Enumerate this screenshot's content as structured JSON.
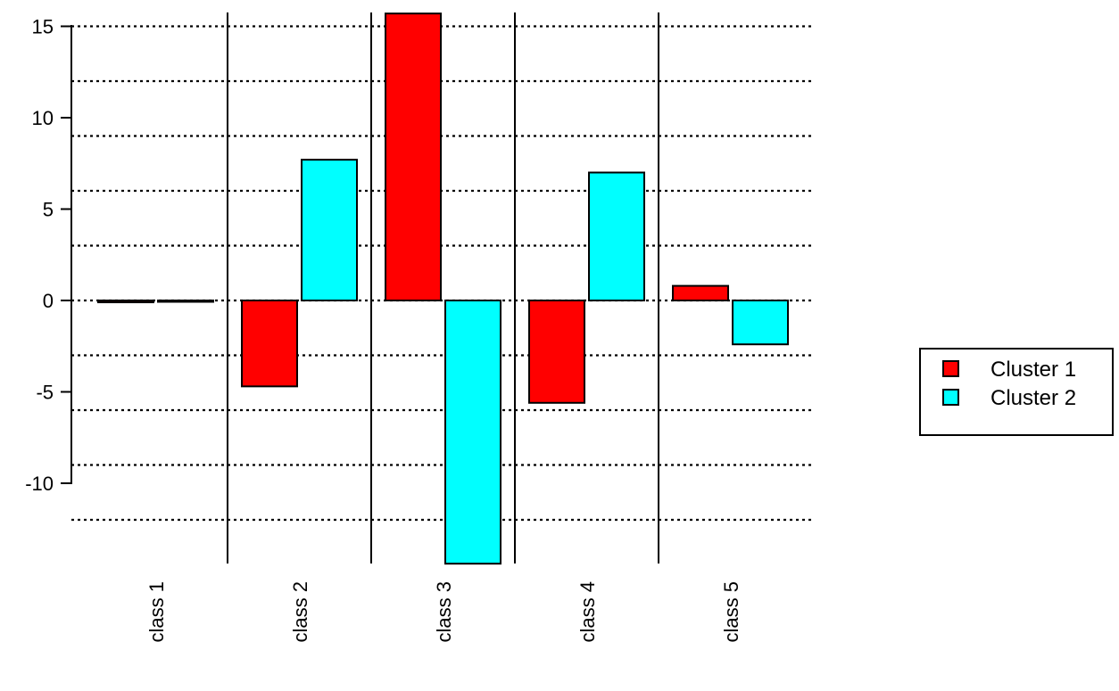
{
  "chart_data": {
    "type": "bar",
    "categories": [
      "class  1",
      "class  2",
      "class  3",
      "class  4",
      "class  5"
    ],
    "series": [
      {
        "name": "Cluster  1",
        "color": "#ff0000",
        "values": [
          -0.1,
          -4.7,
          15.7,
          -5.6,
          0.8
        ]
      },
      {
        "name": "Cluster  2",
        "color": "#00ffff",
        "values": [
          0.0,
          7.7,
          -14.4,
          7.0,
          -2.4
        ]
      }
    ],
    "yticks": [
      -10,
      -5,
      0,
      5,
      10,
      15
    ],
    "ytick_labels": [
      "-10",
      "-5",
      "0",
      "5",
      "10",
      "15"
    ],
    "ylim": [
      -14.4,
      15.7
    ],
    "gridlines": [
      -12,
      -9,
      -6,
      -3,
      0,
      3,
      6,
      9,
      12,
      15
    ],
    "grid": "dotted horizontal",
    "legend_position": "right"
  }
}
